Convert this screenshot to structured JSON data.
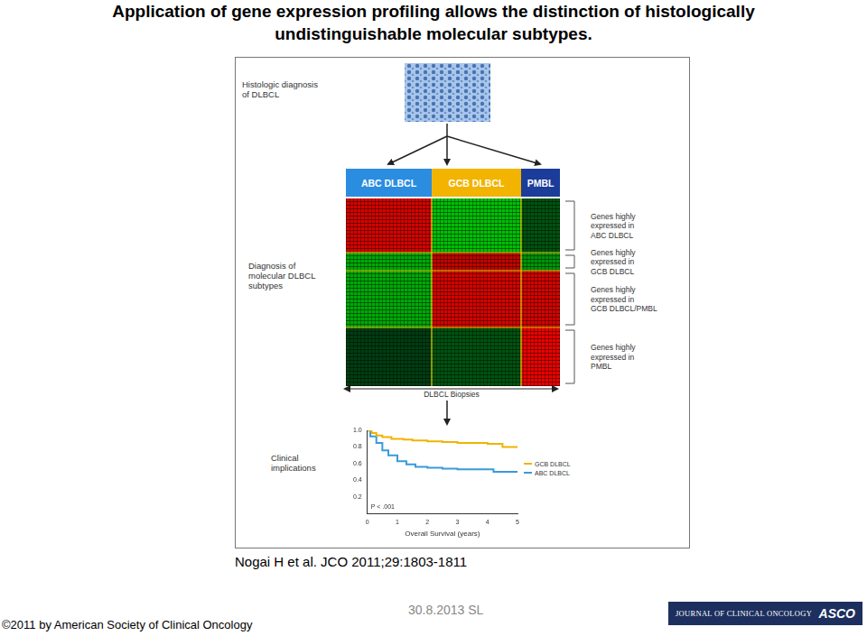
{
  "title": [
    "Application of gene expression profiling allows the distinction of histologically",
    "undistinguishable molecular subtypes."
  ],
  "histology_label": [
    "Histologic diagnosis",
    "of DLBCL"
  ],
  "subtypes": [
    {
      "label": "ABC DLBCL",
      "color": "#2b8de0"
    },
    {
      "label": "GCB DLBCL",
      "color": "#f2b400"
    },
    {
      "label": "PMBL",
      "color": "#1c3c99"
    }
  ],
  "molecular_label": [
    "Diagnosis of",
    "molecular DLBCL",
    "subtypes"
  ],
  "heatmap": {
    "gene_groups": [
      [
        "Genes highly",
        "expressed in",
        "ABC DLBCL"
      ],
      [
        "Genes highly",
        "expressed in",
        "GCB DLBCL"
      ],
      [
        "Genes highly",
        "expressed in",
        "GCB DLBCL/PMBL"
      ],
      [
        "Genes highly",
        "expressed in",
        "PMBL"
      ]
    ],
    "cells": [
      [
        0.8,
        -0.7,
        -0.2
      ],
      [
        -0.6,
        0.7,
        -0.5
      ],
      [
        -0.6,
        0.8,
        0.8
      ],
      [
        -0.1,
        -0.2,
        0.9
      ]
    ]
  },
  "biopsies_label": "DLBCL Biopsies",
  "clinical_label": [
    "Clinical",
    "implications"
  ],
  "chart_data": {
    "type": "line",
    "x_label": "Overall Survival (years)",
    "series": [
      {
        "name": "GCB DLBCL",
        "color": "#f0b400",
        "x": [
          0,
          0.15,
          0.3,
          0.5,
          0.8,
          1.2,
          1.5,
          2.0,
          2.5,
          3.0,
          4.0,
          4.5,
          5.0
        ],
        "values": [
          1.0,
          0.97,
          0.94,
          0.92,
          0.9,
          0.89,
          0.88,
          0.87,
          0.86,
          0.85,
          0.84,
          0.8,
          0.8
        ]
      },
      {
        "name": "ABC DLBCL",
        "color": "#3a9ad9",
        "x": [
          0,
          0.1,
          0.3,
          0.5,
          0.7,
          1.0,
          1.3,
          1.6,
          2.0,
          2.5,
          3.0,
          3.5,
          4.2,
          5.0
        ],
        "values": [
          1.0,
          0.93,
          0.85,
          0.76,
          0.7,
          0.63,
          0.59,
          0.56,
          0.55,
          0.54,
          0.53,
          0.53,
          0.5,
          0.5
        ]
      }
    ],
    "xlim": [
      0,
      5
    ],
    "xticks": [
      0,
      1,
      2,
      3,
      4,
      5
    ],
    "ylim": [
      0,
      1
    ],
    "yticks": [
      {
        "value": 0.2,
        "label": "0.2"
      },
      {
        "value": 0.4,
        "label": "0.4"
      },
      {
        "value": 0.6,
        "label": "0.6"
      },
      {
        "value": 0.8,
        "label": "0.8"
      },
      {
        "value": 1,
        "label": "1.0"
      }
    ],
    "annotation": "P < .001",
    "line_style": "stepped",
    "grid": false
  },
  "citation": "Nogai H et al. JCO 2011;29:1803-1811",
  "date": "30.8.2013 SL",
  "copyright": "©2011 by American Society of Clinical Oncology",
  "logo": {
    "journal": "JOURNAL OF CLINICAL ONCOLOGY",
    "society": "ASCO"
  }
}
